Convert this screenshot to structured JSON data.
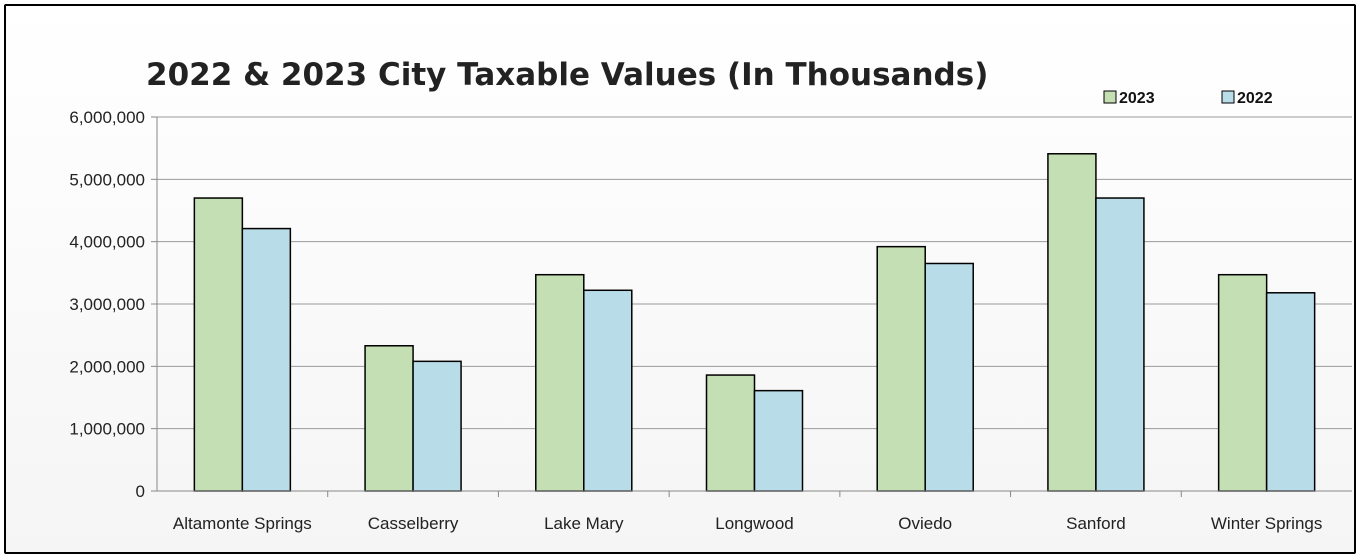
{
  "chart_data": {
    "type": "bar",
    "title": "2022 & 2023 City Taxable Values (In Thousands)",
    "categories": [
      "Altamonte Springs",
      "Casselberry",
      "Lake Mary",
      "Longwood",
      "Oviedo",
      "Sanford",
      "Winter Springs"
    ],
    "series": [
      {
        "name": "2023",
        "color": "#c4dfb3",
        "values": [
          4700000,
          2330000,
          3470000,
          1860000,
          3920000,
          5410000,
          3470000
        ]
      },
      {
        "name": "2022",
        "color": "#b8dde8",
        "values": [
          4210000,
          2080000,
          3220000,
          1610000,
          3650000,
          4700000,
          3180000
        ]
      }
    ],
    "ylim": [
      0,
      6000000
    ],
    "yticks": [
      "0",
      "1,000,000",
      "2,000,000",
      "3,000,000",
      "4,000,000",
      "5,000,000",
      "6,000,000"
    ],
    "ytick_values": [
      0,
      1000000,
      2000000,
      3000000,
      4000000,
      5000000,
      6000000
    ],
    "grid": true,
    "legend_position": "top-right"
  }
}
